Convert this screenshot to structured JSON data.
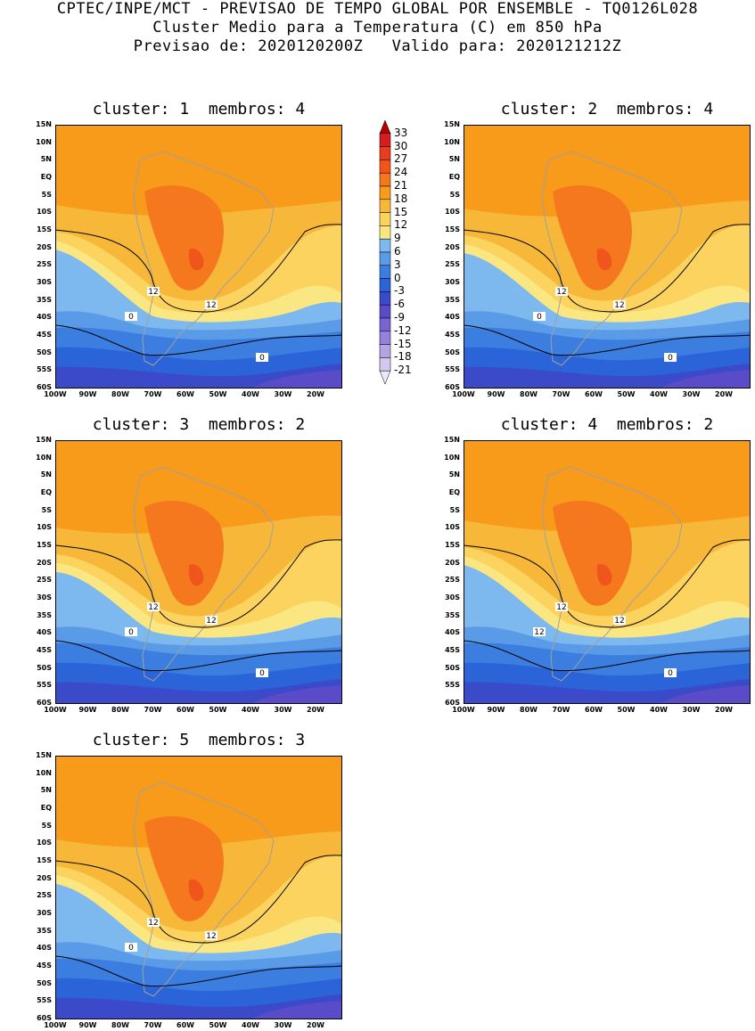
{
  "header": {
    "line1": "CPTEC/INPE/MCT - PREVISAO DE TEMPO GLOBAL POR ENSEMBLE - TQ0126L028",
    "line2": "Cluster Medio para a Temperatura (C) em 850 hPa",
    "line3": "Previsao de: 2020120200Z   Valido para: 2020121212Z"
  },
  "lat_labels": [
    "15N",
    "10N",
    "5N",
    "EQ",
    "5S",
    "10S",
    "15S",
    "20S",
    "25S",
    "30S",
    "35S",
    "40S",
    "45S",
    "50S",
    "55S",
    "60S"
  ],
  "lon_labels": [
    "100W",
    "90W",
    "80W",
    "70W",
    "60W",
    "50W",
    "40W",
    "30W",
    "20W"
  ],
  "panels": [
    {
      "title": "cluster: 1  membros: 4",
      "contours": [
        "12",
        "12",
        "0",
        "0"
      ]
    },
    {
      "title": "cluster: 2  membros: 4",
      "contours": [
        "12",
        "12",
        "0",
        "0"
      ]
    },
    {
      "title": "cluster: 3  membros: 2",
      "contours": [
        "12",
        "12",
        "0",
        "0"
      ]
    },
    {
      "title": "cluster: 4  membros: 2",
      "contours": [
        "12",
        "12",
        "12",
        "0"
      ]
    },
    {
      "title": "cluster: 5  membros: 3",
      "contours": [
        "12",
        "12",
        "0"
      ]
    }
  ],
  "colorbar": {
    "labels": [
      "33",
      "30",
      "27",
      "24",
      "21",
      "18",
      "15",
      "12",
      "9",
      "6",
      "3",
      "0",
      "-3",
      "-6",
      "-9",
      "-12",
      "-15",
      "-18",
      "-21"
    ],
    "colors": [
      "#b40000",
      "#d22020",
      "#e83c1c",
      "#f0561c",
      "#f5781e",
      "#f89a1a",
      "#f7b83a",
      "#fbd35e",
      "#fbe782",
      "#7db8ef",
      "#5a9be8",
      "#3b7ee0",
      "#2b63d8",
      "#3b4ac8",
      "#5a4cc8",
      "#7864d2",
      "#9682dc",
      "#b4a4e6",
      "#d2c8f0",
      "#ece8f8"
    ]
  }
}
